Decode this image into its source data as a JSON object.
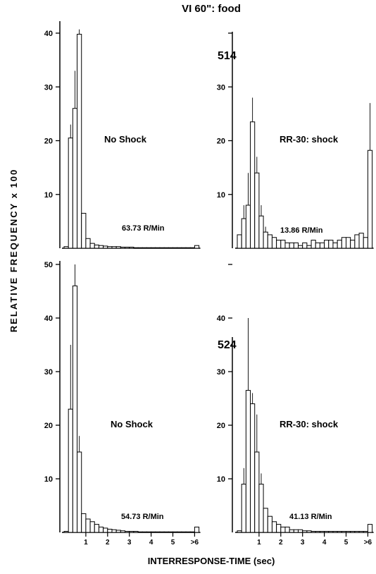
{
  "figure": {
    "title": "VI 60\": food",
    "ylabel": "RELATIVE FREQUENCY x 100",
    "xlabel": "INTERRESPONSE-TIME (sec)"
  },
  "subjects": {
    "top": "514",
    "bottom": "524"
  },
  "chart_data": [
    {
      "type": "bar",
      "panel": "top-left",
      "subject": "514",
      "condition": "No Shock",
      "rate_label": "63.73 R/Min",
      "bin_width_sec": 0.2,
      "last_bin_label": ">6",
      "values": [
        0.3,
        20.5,
        26,
        39.8,
        6.5,
        1.8,
        0.9,
        0.6,
        0.5,
        0.4,
        0.3,
        0.3,
        0.3,
        0.2,
        0.2,
        0.2,
        0.1,
        0.1,
        0.1,
        0.1,
        0.1,
        0.1,
        0.1,
        0.1,
        0.1,
        0.1,
        0.1,
        0.1,
        0.1,
        0.1,
        0.5
      ],
      "error_top": [
        null,
        23,
        33,
        40.7,
        null,
        null,
        null,
        null,
        null,
        null,
        null,
        null,
        null,
        null,
        null,
        null,
        null,
        null,
        null,
        null,
        null,
        null,
        null,
        null,
        null,
        null,
        null,
        null,
        null,
        null,
        null
      ],
      "ylim": [
        0,
        40
      ],
      "yticks": [
        10,
        20,
        30,
        40
      ],
      "ytick_labels": [
        "10",
        "20",
        "30",
        "40"
      ]
    },
    {
      "type": "bar",
      "panel": "top-right",
      "subject": "514",
      "condition": "RR-30: shock",
      "rate_label": "13.86 R/Min",
      "bin_width_sec": 0.2,
      "last_bin_label": ">6",
      "values": [
        2.5,
        5.5,
        8,
        23.5,
        14,
        6,
        3,
        2.5,
        2,
        1.5,
        1.5,
        1,
        1,
        1,
        0.5,
        1,
        0.5,
        1.5,
        1,
        1,
        1.5,
        1.5,
        1,
        1.5,
        2,
        2,
        1.5,
        2.5,
        2.8,
        2,
        18.2
      ],
      "error_top": [
        null,
        8,
        14,
        28,
        17,
        8,
        4,
        null,
        null,
        null,
        null,
        null,
        null,
        null,
        null,
        null,
        null,
        null,
        null,
        null,
        null,
        null,
        null,
        null,
        null,
        null,
        null,
        null,
        null,
        null,
        27
      ],
      "ylim": [
        0,
        40
      ],
      "yticks": [
        10,
        20,
        30,
        40
      ],
      "ytick_labels": [
        "10",
        "20",
        "30",
        ""
      ]
    },
    {
      "type": "bar",
      "panel": "bottom-left",
      "subject": "524",
      "condition": "No Shock",
      "rate_label": "54.73 R/Min",
      "bin_width_sec": 0.2,
      "last_bin_label": ">6",
      "values": [
        0.2,
        23,
        46,
        15,
        3.5,
        2.5,
        2,
        1.5,
        1,
        0.8,
        0.6,
        0.5,
        0.4,
        0.3,
        0.2,
        0.2,
        0.2,
        0.1,
        0.1,
        0.1,
        0.1,
        0.1,
        0.1,
        0.1,
        0.1,
        0.1,
        0.1,
        0.1,
        0.1,
        0.1,
        1
      ],
      "error_top": [
        null,
        35,
        50,
        18,
        null,
        null,
        null,
        null,
        null,
        null,
        null,
        null,
        null,
        null,
        null,
        null,
        null,
        null,
        null,
        null,
        null,
        null,
        null,
        null,
        null,
        null,
        null,
        null,
        null,
        null,
        null
      ],
      "ylim": [
        0,
        50
      ],
      "yticks": [
        10,
        20,
        30,
        40,
        50
      ],
      "ytick_labels": [
        "10",
        "20",
        "30",
        "40",
        "50"
      ],
      "xtick_positions_sec": [
        1,
        2,
        3,
        4,
        5,
        6
      ],
      "xtick_labels": [
        "1",
        "2",
        "3",
        "4",
        "5",
        ">6"
      ]
    },
    {
      "type": "bar",
      "panel": "bottom-right",
      "subject": "524",
      "condition": "RR-30: shock",
      "rate_label": "41.13 R/Min",
      "bin_width_sec": 0.2,
      "last_bin_label": ">6",
      "values": [
        0.3,
        9,
        26.5,
        24,
        15,
        9,
        4.5,
        3,
        2,
        1.5,
        1,
        1,
        0.5,
        0.5,
        0.5,
        0.3,
        0.3,
        0.2,
        0.2,
        0.2,
        0.2,
        0.2,
        0.2,
        0.2,
        0.2,
        0.2,
        0.2,
        0.2,
        0.2,
        0.2,
        1.5
      ],
      "error_top": [
        null,
        12,
        40,
        26,
        22,
        11,
        null,
        null,
        null,
        null,
        null,
        null,
        null,
        null,
        null,
        null,
        null,
        null,
        null,
        null,
        null,
        null,
        null,
        null,
        null,
        null,
        null,
        null,
        null,
        null,
        null
      ],
      "ylim": [
        0,
        50
      ],
      "yticks": [
        10,
        20,
        30,
        40,
        50
      ],
      "ytick_labels": [
        "10",
        "20",
        "30",
        "40",
        ""
      ],
      "xtick_positions_sec": [
        1,
        2,
        3,
        4,
        5,
        6
      ],
      "xtick_labels": [
        "1",
        "2",
        "3",
        "4",
        "5",
        ">6"
      ]
    }
  ]
}
